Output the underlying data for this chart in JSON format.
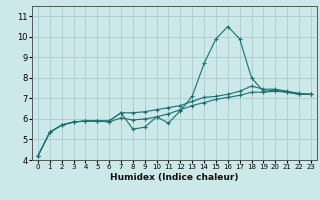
{
  "title": "",
  "xlabel": "Humidex (Indice chaleur)",
  "bg_color": "#cde8e8",
  "grid_color": "#aacccc",
  "line_color": "#1a7070",
  "xlim": [
    -0.5,
    23.5
  ],
  "ylim": [
    4,
    11.5
  ],
  "yticks": [
    4,
    5,
    6,
    7,
    8,
    9,
    10,
    11
  ],
  "xticks": [
    0,
    1,
    2,
    3,
    4,
    5,
    6,
    7,
    8,
    9,
    10,
    11,
    12,
    13,
    14,
    15,
    16,
    17,
    18,
    19,
    20,
    21,
    22,
    23
  ],
  "line1_x": [
    0,
    1,
    2,
    3,
    4,
    5,
    6,
    7,
    8,
    9,
    10,
    11,
    12,
    13,
    14,
    15,
    16,
    17,
    18,
    19,
    20,
    21,
    22,
    23
  ],
  "line1_y": [
    4.2,
    5.35,
    5.7,
    5.85,
    5.9,
    5.9,
    5.9,
    6.3,
    5.5,
    5.6,
    6.1,
    5.8,
    6.4,
    7.1,
    8.7,
    9.9,
    10.5,
    9.9,
    8.0,
    7.35,
    7.4,
    7.3,
    7.2,
    7.2
  ],
  "line2_x": [
    0,
    1,
    2,
    3,
    4,
    5,
    6,
    7,
    8,
    9,
    10,
    11,
    12,
    13,
    14,
    15,
    16,
    17,
    18,
    19,
    20,
    21,
    22,
    23
  ],
  "line2_y": [
    4.2,
    5.35,
    5.7,
    5.85,
    5.9,
    5.9,
    5.9,
    6.3,
    6.3,
    6.35,
    6.45,
    6.55,
    6.65,
    6.85,
    7.05,
    7.1,
    7.2,
    7.35,
    7.6,
    7.45,
    7.45,
    7.35,
    7.25,
    7.2
  ],
  "line3_x": [
    0,
    1,
    2,
    3,
    4,
    5,
    6,
    7,
    8,
    9,
    10,
    11,
    12,
    13,
    14,
    15,
    16,
    17,
    18,
    19,
    20,
    21,
    22,
    23
  ],
  "line3_y": [
    4.2,
    5.35,
    5.7,
    5.85,
    5.9,
    5.9,
    5.85,
    6.05,
    5.95,
    6.0,
    6.1,
    6.25,
    6.45,
    6.65,
    6.8,
    6.95,
    7.05,
    7.15,
    7.3,
    7.3,
    7.35,
    7.3,
    7.2,
    7.2
  ]
}
